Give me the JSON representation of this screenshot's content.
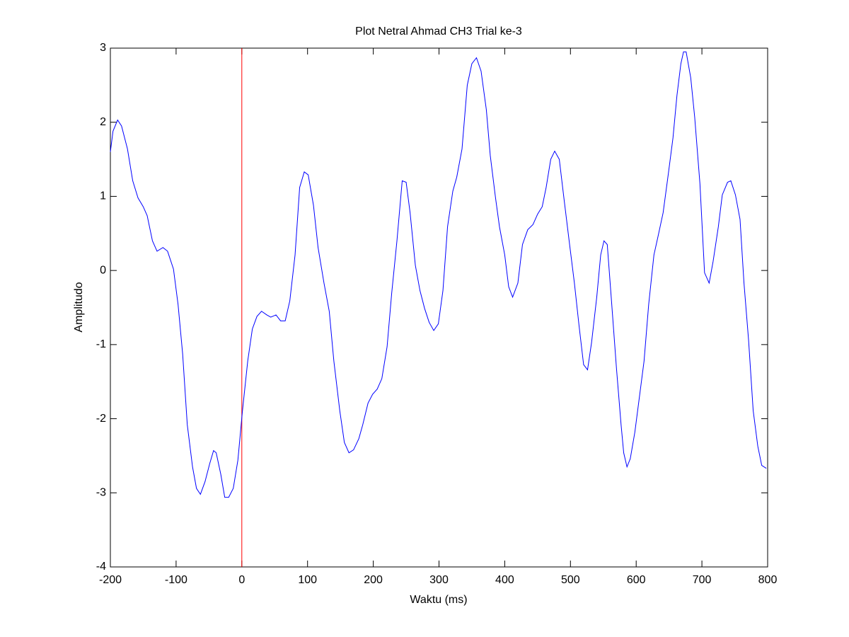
{
  "chart_data": {
    "type": "line",
    "title": "Plot Netral Ahmad CH3 Trial ke-3",
    "x_label": "Waktu (ms)",
    "y_label": "Amplitudo",
    "x": [
      -200,
      -196,
      -189,
      -183,
      -174,
      -166,
      -158,
      -150,
      -144,
      -136,
      -129,
      -120,
      -113,
      -104,
      -97,
      -90,
      -83,
      -75,
      -69,
      -63,
      -56,
      -49,
      -43,
      -39,
      -32,
      -26,
      -20,
      -13,
      -6,
      1,
      9,
      16,
      23,
      30,
      38,
      44,
      52,
      59,
      66,
      73,
      81,
      88,
      95,
      101,
      109,
      116,
      125,
      133,
      140,
      149,
      156,
      163,
      170,
      178,
      184,
      192,
      199,
      206,
      213,
      221,
      228,
      236,
      244,
      250,
      256,
      264,
      271,
      278,
      285,
      292,
      299,
      306,
      313,
      321,
      327,
      335,
      343,
      350,
      357,
      364,
      372,
      378,
      386,
      392,
      400,
      406,
      412,
      420,
      427,
      435,
      443,
      450,
      457,
      463,
      470,
      476,
      483,
      490,
      498,
      506,
      513,
      520,
      526,
      532,
      540,
      546,
      551,
      556,
      562,
      570,
      577,
      581,
      586,
      591,
      598,
      605,
      612,
      619,
      627,
      633,
      641,
      649,
      656,
      662,
      668,
      672,
      676,
      683,
      689,
      697,
      704,
      711,
      717,
      725,
      731,
      739,
      744,
      751,
      758,
      764,
      771,
      778,
      785,
      791,
      798
    ],
    "series": [
      {
        "name": "Amplitudo",
        "color": "#0000ff",
        "values": [
          1.6,
          1.88,
          2.03,
          1.95,
          1.64,
          1.21,
          0.98,
          0.86,
          0.74,
          0.4,
          0.26,
          0.31,
          0.26,
          0.02,
          -0.46,
          -1.13,
          -2.08,
          -2.65,
          -2.94,
          -3.02,
          -2.85,
          -2.61,
          -2.43,
          -2.46,
          -2.75,
          -3.06,
          -3.06,
          -2.94,
          -2.56,
          -1.89,
          -1.22,
          -0.79,
          -0.62,
          -0.55,
          -0.6,
          -0.63,
          -0.6,
          -0.68,
          -0.68,
          -0.41,
          0.21,
          1.12,
          1.33,
          1.29,
          0.88,
          0.31,
          -0.17,
          -0.55,
          -1.22,
          -1.89,
          -2.32,
          -2.46,
          -2.42,
          -2.27,
          -2.08,
          -1.79,
          -1.67,
          -1.6,
          -1.46,
          -1.03,
          -0.31,
          0.4,
          1.21,
          1.19,
          0.78,
          0.07,
          -0.27,
          -0.51,
          -0.7,
          -0.81,
          -0.72,
          -0.27,
          0.59,
          1.07,
          1.26,
          1.64,
          2.5,
          2.79,
          2.87,
          2.69,
          2.17,
          1.55,
          0.98,
          0.59,
          0.21,
          -0.22,
          -0.36,
          -0.17,
          0.35,
          0.55,
          0.62,
          0.76,
          0.86,
          1.12,
          1.5,
          1.61,
          1.5,
          0.98,
          0.4,
          -0.17,
          -0.74,
          -1.27,
          -1.34,
          -0.98,
          -0.36,
          0.21,
          0.4,
          0.35,
          -0.36,
          -1.32,
          -2.08,
          -2.46,
          -2.65,
          -2.54,
          -2.18,
          -1.7,
          -1.22,
          -0.46,
          0.21,
          0.45,
          0.78,
          1.31,
          1.79,
          2.36,
          2.79,
          2.95,
          2.95,
          2.6,
          2.07,
          1.17,
          -0.03,
          -0.17,
          0.12,
          0.59,
          1.02,
          1.19,
          1.21,
          1.02,
          0.69,
          -0.17,
          -0.94,
          -1.89,
          -2.37,
          -2.63,
          -2.67
        ]
      }
    ],
    "vlines": [
      {
        "x": 0,
        "color": "#ff0000"
      }
    ],
    "xlim": [
      -200,
      800
    ],
    "xticks": [
      -200,
      -100,
      0,
      100,
      200,
      300,
      400,
      500,
      600,
      700,
      800
    ],
    "ylim": [
      -4,
      3
    ],
    "yticks": [
      -4,
      -3,
      -2,
      -1,
      0,
      1,
      2,
      3
    ],
    "grid": false
  }
}
